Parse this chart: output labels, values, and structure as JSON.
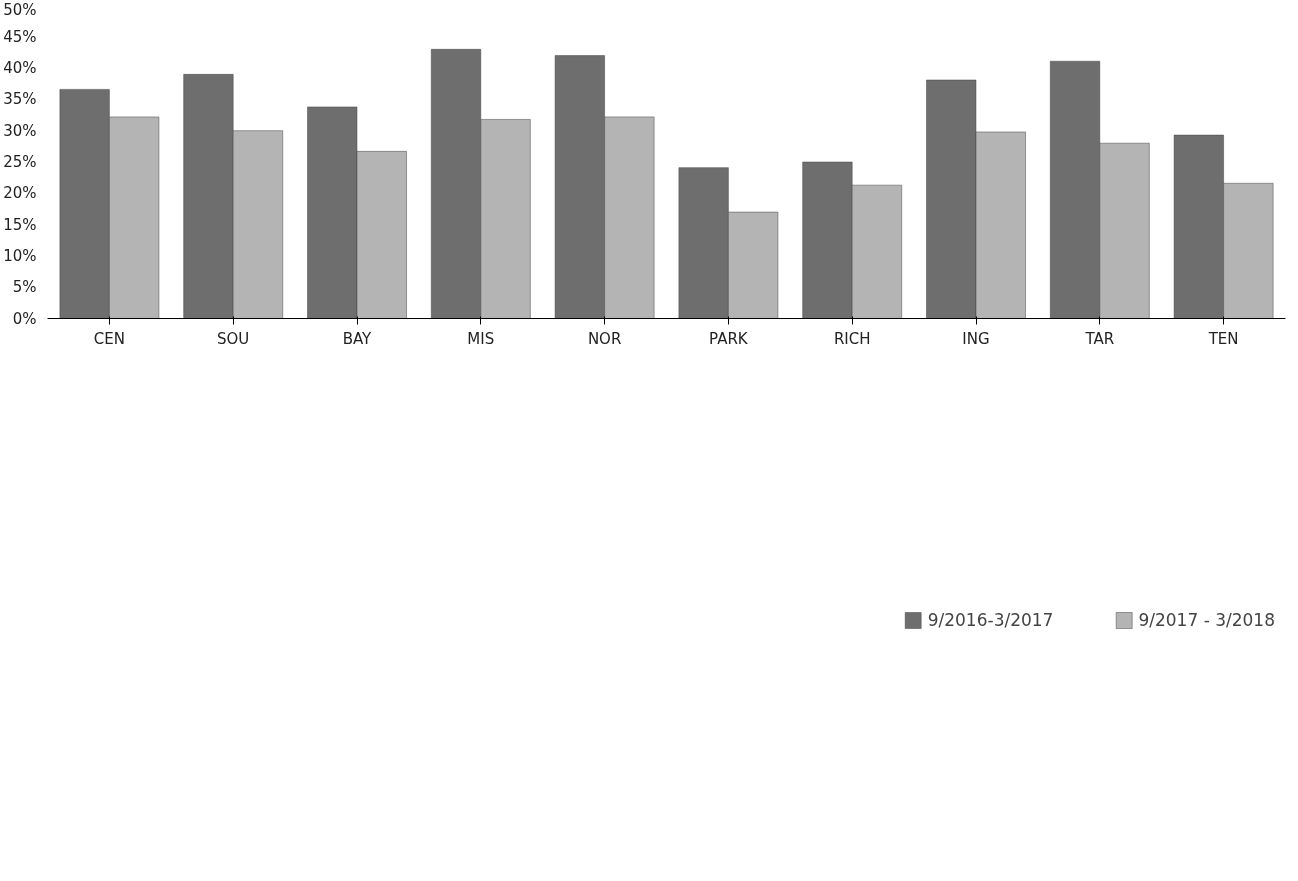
{
  "chart_data": {
    "type": "bar",
    "categories": [
      "CEN",
      "SOU",
      "BAY",
      "MIS",
      "NOR",
      "PARK",
      "RICH",
      "ING",
      "TAR",
      "TEN"
    ],
    "series": [
      {
        "name": "9/2016-3/2017",
        "color": "#6e6e6e",
        "values": [
          36.6,
          39,
          33.8,
          43,
          42,
          24.1,
          25,
          38.1,
          41.1,
          29.3
        ]
      },
      {
        "name": "9/2017 - 3/2018",
        "color": "#b4b4b4",
        "values": [
          32.2,
          30,
          26.7,
          31.8,
          32.2,
          17,
          21.3,
          29.8,
          28,
          21.6
        ]
      }
    ],
    "ylim": [
      0,
      50
    ],
    "yticks": [
      {
        "value": 0,
        "label": "0%"
      },
      {
        "value": 5,
        "label": "5%"
      },
      {
        "value": 10,
        "label": "10%"
      },
      {
        "value": 15,
        "label": "15%"
      },
      {
        "value": 20,
        "label": "20%"
      },
      {
        "value": 25,
        "label": "25%"
      },
      {
        "value": 30,
        "label": "30%"
      },
      {
        "value": 35,
        "label": "35%"
      },
      {
        "value": 40,
        "label": "40%"
      },
      {
        "value": 45,
        "label": "45%"
      },
      {
        "value": 50,
        "label": "50%"
      }
    ],
    "legend": "bottom",
    "grid": false
  }
}
